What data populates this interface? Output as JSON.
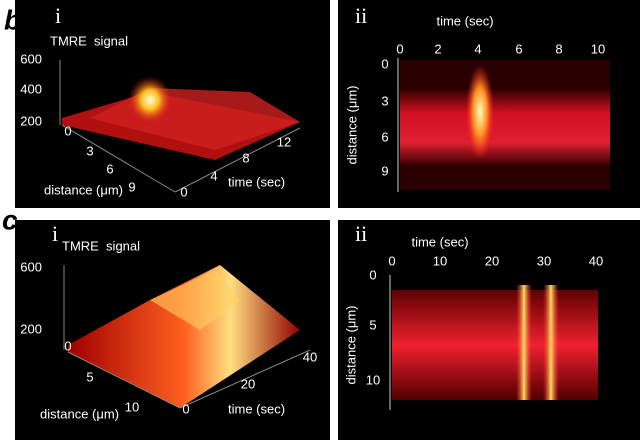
{
  "panels": [
    {
      "letter": "b",
      "subpanels": [
        {
          "numeral": "i",
          "label": "TMRE  signal",
          "z_ticks": [
            "600",
            "400",
            "200"
          ],
          "x_ticks": [
            "0",
            "3",
            "6",
            "9"
          ],
          "x_label": "distance (μm)",
          "y_ticks": [
            "0",
            "4",
            "8",
            "12"
          ],
          "y_label": "time (sec)"
        },
        {
          "numeral": "ii",
          "x_label": "time (sec)",
          "x_ticks": [
            "0",
            "2",
            "4",
            "6",
            "8",
            "10"
          ],
          "y_label": "distance (μm)",
          "y_ticks": [
            "0",
            "3",
            "6",
            "9"
          ]
        }
      ]
    },
    {
      "letter": "c",
      "subpanels": [
        {
          "numeral": "i",
          "label": "TMRE  signal",
          "z_ticks": [
            "600",
            "200"
          ],
          "x_ticks": [
            "0",
            "5",
            "10"
          ],
          "x_label": "distance (μm)",
          "y_ticks": [
            "0",
            "20",
            "40"
          ],
          "y_label": "time (sec)"
        },
        {
          "numeral": "ii",
          "x_label": "time (sec)",
          "x_ticks": [
            "0",
            "10",
            "20",
            "30",
            "40"
          ],
          "y_label": "distance (μm)",
          "y_ticks": [
            "0",
            "5",
            "10"
          ]
        }
      ]
    }
  ]
}
